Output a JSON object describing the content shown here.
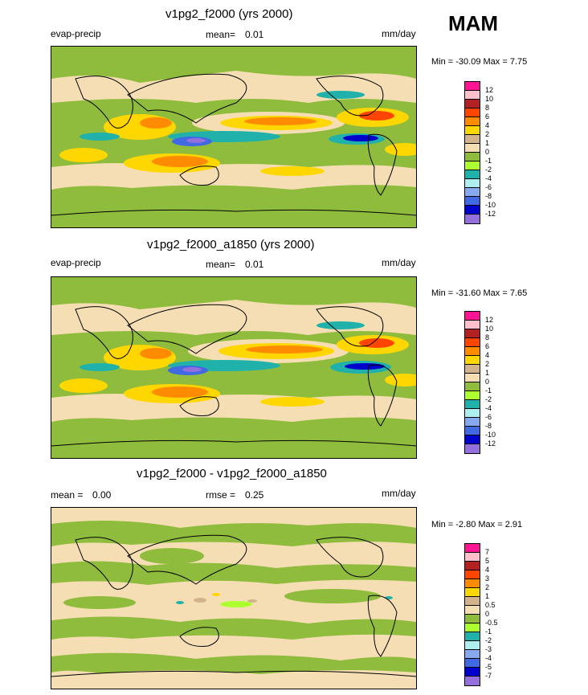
{
  "season": "MAM",
  "units": "mm/day",
  "panels": [
    {
      "title": "v1pg2_f2000 (yrs 2000)",
      "variable": "evap-precip",
      "mean_label": "mean=",
      "mean_value": "0.01",
      "units": "mm/day",
      "minmax": "Min = -30.09 Max =   7.75",
      "levels": [
        "12",
        "10",
        "8",
        "6",
        "4",
        "2",
        "1",
        "0",
        "-1",
        "-2",
        "-4",
        "-6",
        "-8",
        "-10",
        "-12"
      ],
      "colors": [
        "#ff1493",
        "#ffc0cb",
        "#b22222",
        "#ff4500",
        "#ff8c00",
        "#ffd700",
        "#d2b48c",
        "#f5deb3",
        "#8fbc3c",
        "#adff2f",
        "#20b2aa",
        "#afeeee",
        "#87aaee",
        "#4169e1",
        "#0000cd",
        "#9370db"
      ]
    },
    {
      "title": "v1pg2_f2000_a1850 (yrs 2000)",
      "variable": "evap-precip",
      "mean_label": "mean=",
      "mean_value": "0.01",
      "units": "mm/day",
      "minmax": "Min = -31.60 Max =   7.65",
      "levels": [
        "12",
        "10",
        "8",
        "6",
        "4",
        "2",
        "1",
        "0",
        "-1",
        "-2",
        "-4",
        "-6",
        "-8",
        "-10",
        "-12"
      ],
      "colors": [
        "#ff1493",
        "#ffc0cb",
        "#b22222",
        "#ff4500",
        "#ff8c00",
        "#ffd700",
        "#d2b48c",
        "#f5deb3",
        "#8fbc3c",
        "#adff2f",
        "#20b2aa",
        "#afeeee",
        "#87aaee",
        "#4169e1",
        "#0000cd",
        "#9370db"
      ]
    },
    {
      "title": "v1pg2_f2000 - v1pg2_f2000_a1850",
      "mean_label": "mean =",
      "mean_value": "0.00",
      "rmse_label": "rmse =",
      "rmse_value": "0.25",
      "units": "mm/day",
      "minmax": "Min =  -2.80 Max =   2.91",
      "levels": [
        "7",
        "5",
        "4",
        "3",
        "2",
        "1",
        "0.5",
        "0",
        "-0.5",
        "-1",
        "-2",
        "-3",
        "-4",
        "-5",
        "-7"
      ],
      "colors": [
        "#ff1493",
        "#ffc0cb",
        "#b22222",
        "#ff4500",
        "#ff8c00",
        "#ffd700",
        "#d2b48c",
        "#f5deb3",
        "#8fbc3c",
        "#adff2f",
        "#20b2aa",
        "#afeeee",
        "#87aaee",
        "#4169e1",
        "#0000cd",
        "#9370db"
      ]
    }
  ],
  "chart_data": [
    {
      "type": "heatmap",
      "title": "v1pg2_f2000 (yrs 2000)",
      "field": "evap-precip",
      "units": "mm/day",
      "mean": 0.01,
      "min": -30.09,
      "max": 7.75,
      "contour_levels": [
        -12,
        -10,
        -8,
        -6,
        -4,
        -2,
        -1,
        0,
        1,
        2,
        4,
        6,
        8,
        10,
        12
      ],
      "projection": "global lat-lon, 0 to 360 longitude"
    },
    {
      "type": "heatmap",
      "title": "v1pg2_f2000_a1850 (yrs 2000)",
      "field": "evap-precip",
      "units": "mm/day",
      "mean": 0.01,
      "min": -31.6,
      "max": 7.65,
      "contour_levels": [
        -12,
        -10,
        -8,
        -6,
        -4,
        -2,
        -1,
        0,
        1,
        2,
        4,
        6,
        8,
        10,
        12
      ],
      "projection": "global lat-lon, 0 to 360 longitude"
    },
    {
      "type": "heatmap",
      "title": "v1pg2_f2000 - v1pg2_f2000_a1850",
      "units": "mm/day",
      "mean": 0.0,
      "rmse": 0.25,
      "min": -2.8,
      "max": 2.91,
      "contour_levels": [
        -7,
        -5,
        -4,
        -3,
        -2,
        -1,
        -0.5,
        0,
        0.5,
        1,
        2,
        3,
        4,
        5,
        7
      ],
      "projection": "global lat-lon, 0 to 360 longitude"
    }
  ]
}
